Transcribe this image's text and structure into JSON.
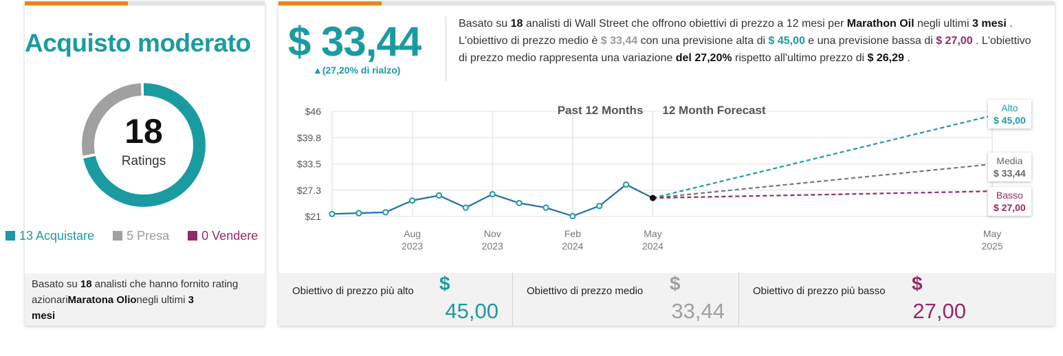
{
  "left_card": {
    "consensus": "Acquisto moderato",
    "total": "18",
    "total_label": "Ratings",
    "legend": [
      {
        "label": "13 Acquistare",
        "color": "#1a9ba1",
        "count": 13
      },
      {
        "label": "5 Presa",
        "color": "#a0a0a0",
        "count": 5
      },
      {
        "label": "0 Vendere",
        "color": "#932a68",
        "count": 0
      }
    ],
    "footer": {
      "p1": "Basato su ",
      "n": "18",
      "p2": " analisti che hanno fornito rating azionari",
      "company": "Maratona Olio",
      "p3": "negli ultimi ",
      "months": "3",
      "p4": "mesi"
    }
  },
  "right_card": {
    "avg_price": "$ 33,44",
    "upside": "▲(27,20% di rialzo)",
    "summary": {
      "s1": "Basato su ",
      "n": "18",
      "s2": " analisti di Wall Street che offrono obiettivi di prezzo a 12 mesi per ",
      "company": "Marathon Oil",
      "s3": " negli ultimi ",
      "months": "3 mesi",
      "s4": " . L'obiettivo di prezzo medio è ",
      "avg": "$ 33,44",
      "s5": " con una previsione alta di ",
      "high": "$ 45,00",
      "s6": " e una previsione bassa di ",
      "low": "$ 27,00",
      "s7": " . L'obiettivo di prezzo medio rappresenta una variazione ",
      "change": "del 27,20%",
      "s8": " rispetto all'ultimo prezzo di ",
      "last": "$ 26,29",
      "s9": " ."
    },
    "targets": [
      {
        "label": "Obiettivo di prezzo più alto",
        "currency": "$",
        "value": "45,00",
        "color": "#1a9ba1"
      },
      {
        "label": "Obiettivo di prezzo medio",
        "currency": "$",
        "value": "33,44",
        "color": "#a0a0a0"
      },
      {
        "label": "Obiettivo di prezzo più basso",
        "currency": "$",
        "value": "27,00",
        "color": "#932a68"
      }
    ]
  },
  "chart_data": {
    "type": "line",
    "titles": [
      "Past 12 Months",
      "12 Month Forecast"
    ],
    "y_ticks": [
      "$46",
      "$39.8",
      "$33.5",
      "$27.3",
      "$21"
    ],
    "ylim": [
      21,
      46
    ],
    "x_ticks": [
      {
        "month": "Aug",
        "year": "2023",
        "t": 3
      },
      {
        "month": "Nov",
        "year": "2023",
        "t": 6
      },
      {
        "month": "Feb",
        "year": "2024",
        "t": 9
      },
      {
        "month": "May",
        "year": "2024",
        "t": 12
      },
      {
        "month": "May",
        "year": "2025",
        "t": 24.7
      }
    ],
    "history": {
      "color": "#1c6fa8",
      "points": [
        {
          "t": 0,
          "v": 21.6
        },
        {
          "t": 1,
          "v": 21.8
        },
        {
          "t": 2,
          "v": 22.0
        },
        {
          "t": 3,
          "v": 24.8
        },
        {
          "t": 4,
          "v": 26.0
        },
        {
          "t": 5,
          "v": 23.1
        },
        {
          "t": 6,
          "v": 26.3
        },
        {
          "t": 7,
          "v": 24.2
        },
        {
          "t": 8,
          "v": 23.1
        },
        {
          "t": 9,
          "v": 21.1
        },
        {
          "t": 10,
          "v": 23.5
        },
        {
          "t": 11,
          "v": 28.6
        },
        {
          "t": 12,
          "v": 25.4
        }
      ]
    },
    "forecasts": [
      {
        "name": "Alto",
        "value": 45.0,
        "label": "$ 45,00",
        "color": "#1a9ba1"
      },
      {
        "name": "Media",
        "value": 33.44,
        "label": "$ 33,44",
        "color": "#777777"
      },
      {
        "name": "Basso",
        "value": 27.0,
        "label": "$ 27,00",
        "color": "#932a68"
      }
    ],
    "forecast_end_t": 24.7
  }
}
